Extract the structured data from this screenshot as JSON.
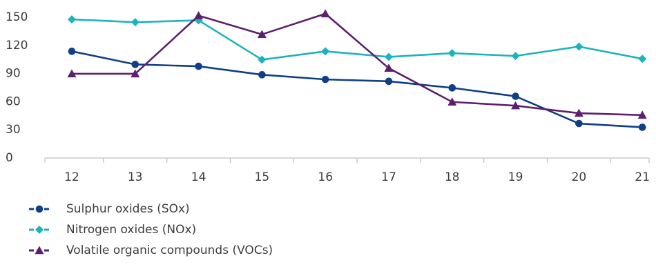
{
  "chart_data": {
    "type": "line",
    "x": [
      "12",
      "13",
      "14",
      "15",
      "16",
      "17",
      "18",
      "19",
      "20",
      "21"
    ],
    "ylim": [
      0,
      150
    ],
    "yticks": [
      0,
      30,
      60,
      90,
      120,
      150
    ],
    "grid": false,
    "legend_placement": "bottom-left",
    "series": [
      {
        "name": "Sulphur oxides (SOx)",
        "color": "#0f3f86",
        "marker": "circle",
        "values": [
          113,
          99,
          97,
          88,
          83,
          81,
          74,
          65,
          36,
          32
        ]
      },
      {
        "name": "Nitrogen oxides (NOx)",
        "color": "#1cb3bd",
        "marker": "diamond",
        "values": [
          147,
          144,
          146,
          104,
          113,
          107,
          111,
          108,
          118,
          105
        ]
      },
      {
        "name": "Volatile organic compounds (VOCs)",
        "color": "#5e1f6e",
        "marker": "triangle",
        "values": [
          89,
          89,
          151,
          131,
          153,
          95,
          59,
          55,
          47,
          45
        ]
      }
    ]
  }
}
